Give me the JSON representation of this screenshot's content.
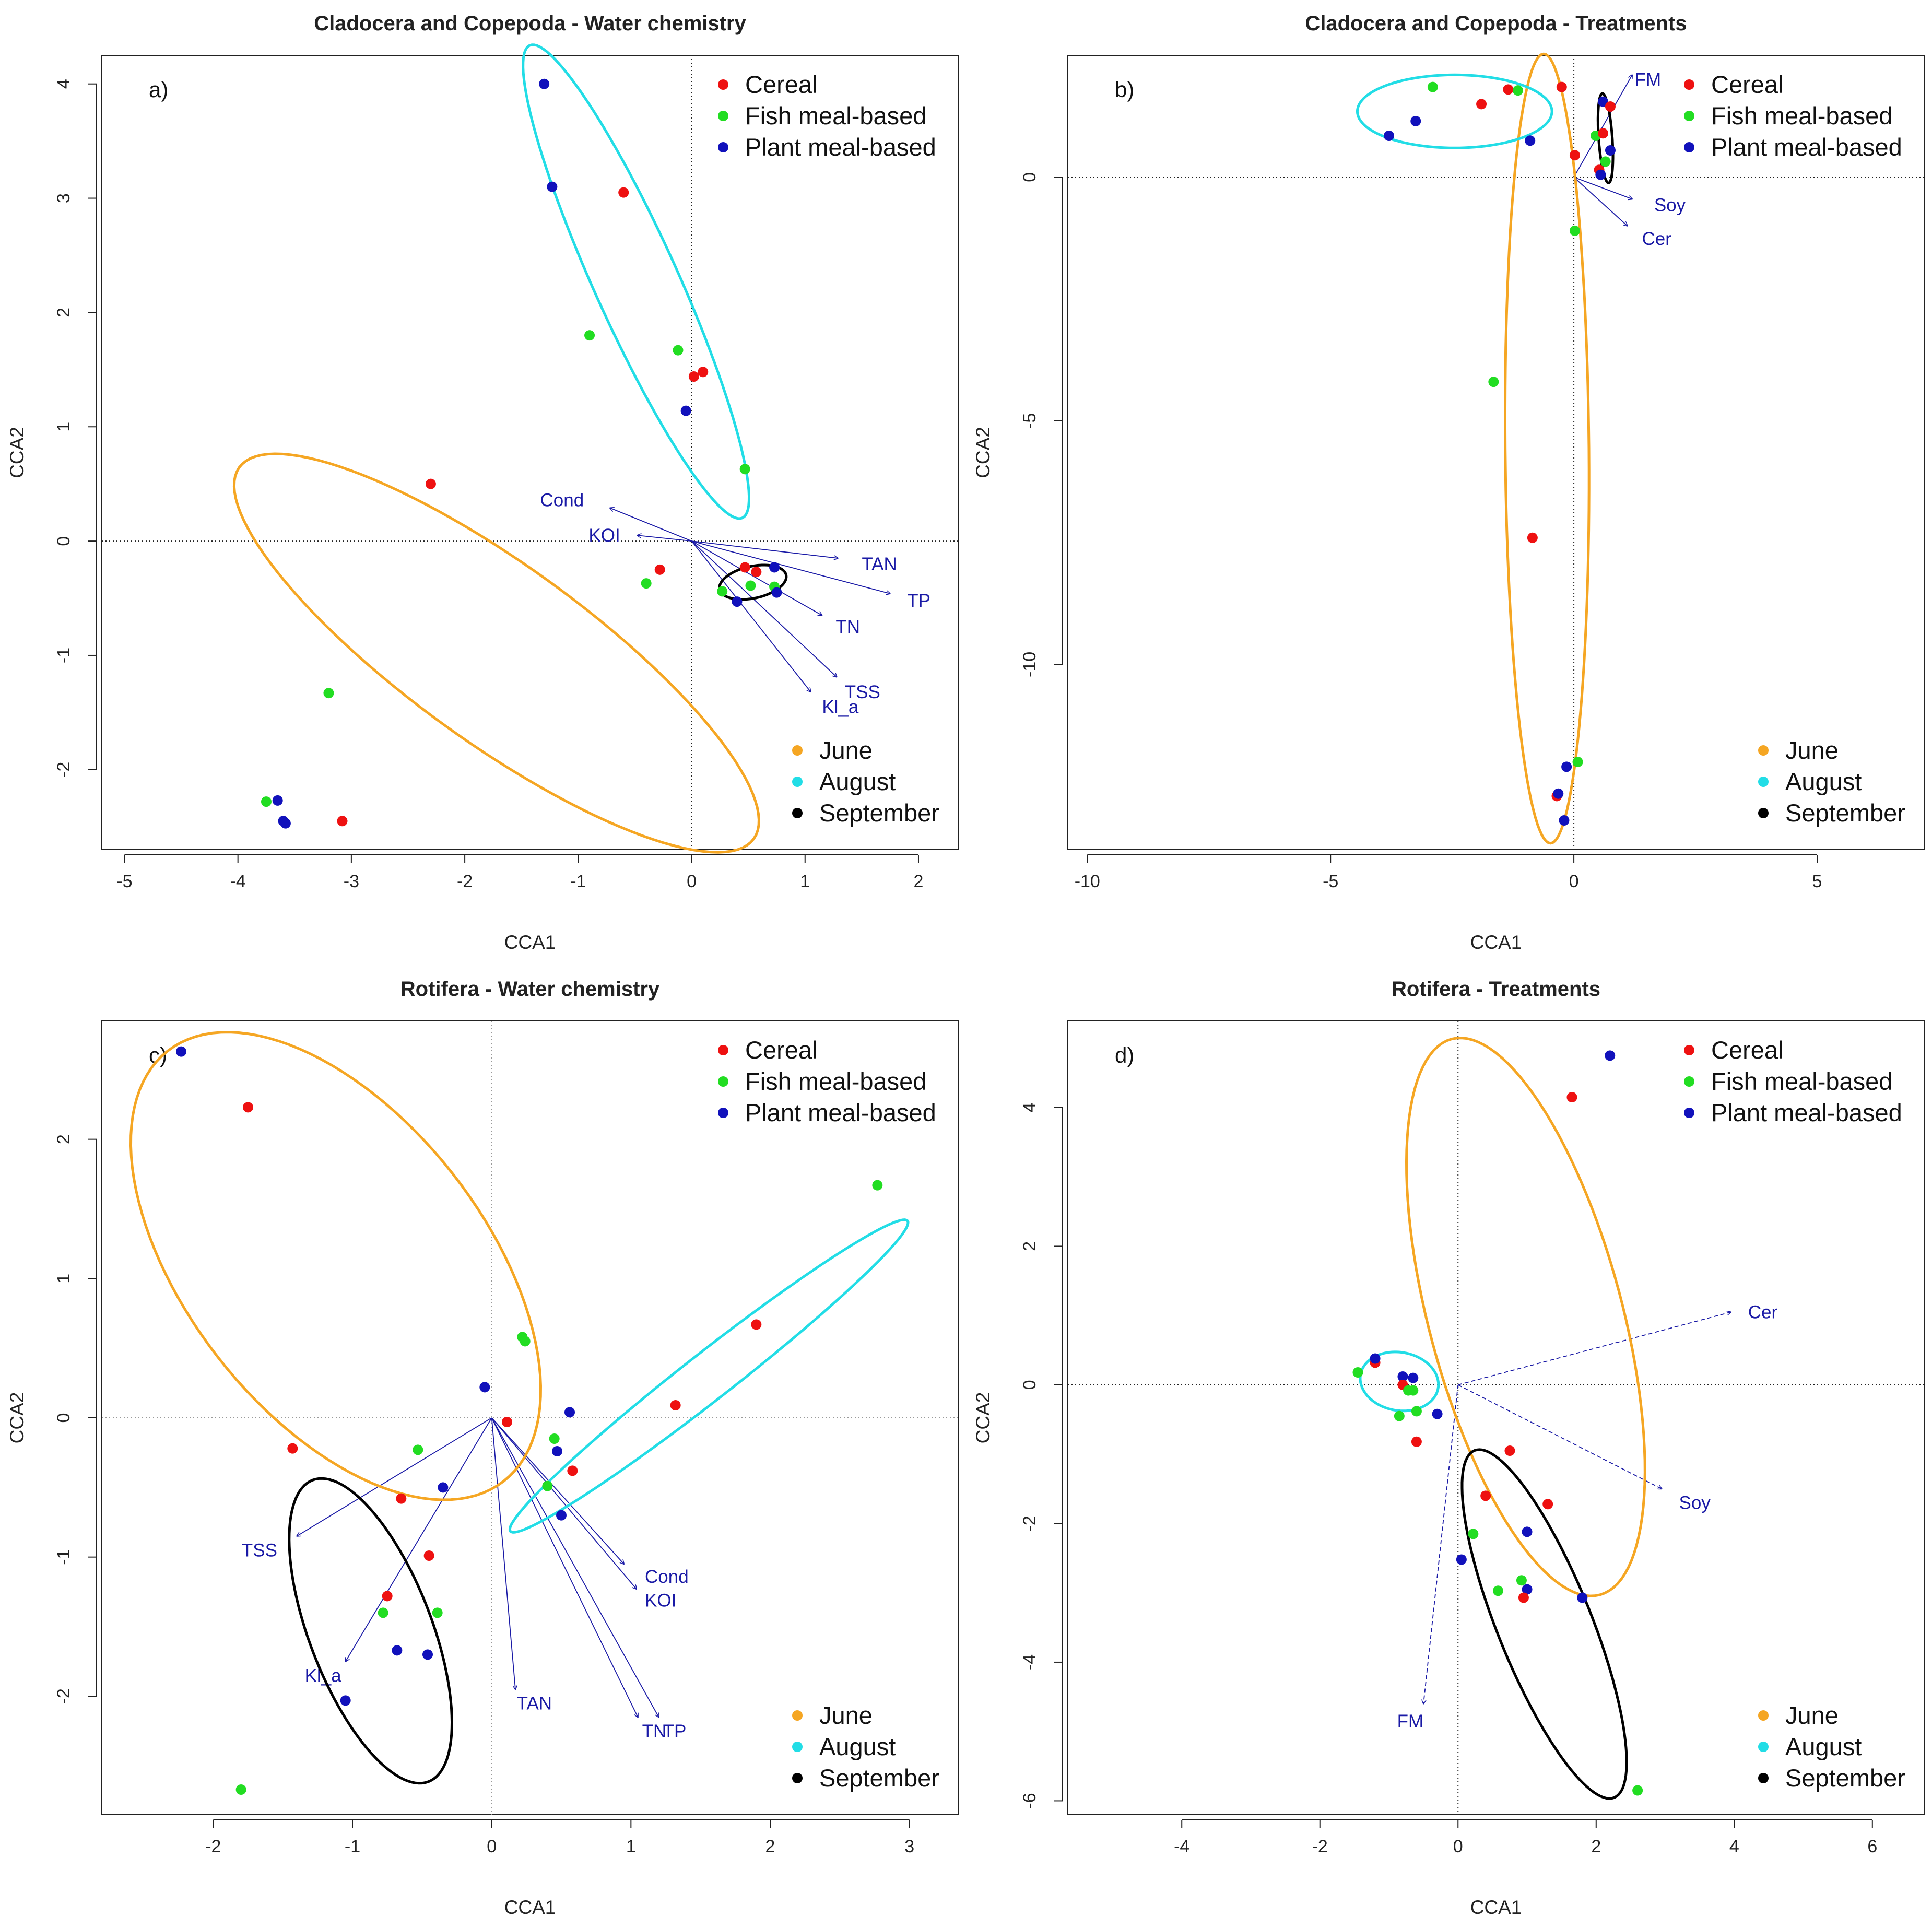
{
  "colors": {
    "cereal": "#ee1111",
    "fish": "#22dd22",
    "plant": "#1111bb",
    "june": "#f5a623",
    "august": "#22dde6",
    "september": "#000000",
    "vector": "#1a1aa6"
  },
  "legend_treatments": [
    {
      "label": "Cereal",
      "color": "#ee1111"
    },
    {
      "label": "Fish meal-based",
      "color": "#22dd22"
    },
    {
      "label": "Plant meal-based",
      "color": "#1111bb"
    }
  ],
  "legend_months": [
    {
      "label": "June",
      "color": "#f5a623"
    },
    {
      "label": "August",
      "color": "#22dde6"
    },
    {
      "label": "September",
      "color": "#000000"
    }
  ],
  "chart_data": [
    {
      "type": "scatter",
      "panel": "a)",
      "title": "Cladocera and Copepoda - Water chemistry",
      "xlabel": "CCA1",
      "ylabel": "CCA2",
      "xlim": [
        -5.2,
        2.35
      ],
      "ylim": [
        -2.7,
        4.25
      ],
      "xticks": [
        -5,
        -4,
        -3,
        -2,
        -1,
        0,
        1,
        2
      ],
      "yticks": [
        -2,
        -1,
        0,
        1,
        2,
        3,
        4
      ],
      "legend_position": "top-right / bottom-right",
      "points": [
        {
          "x": -1.3,
          "y": 4.0,
          "t": "plant"
        },
        {
          "x": -1.23,
          "y": 3.1,
          "t": "plant"
        },
        {
          "x": -0.6,
          "y": 3.05,
          "t": "cereal"
        },
        {
          "x": -0.9,
          "y": 1.8,
          "t": "fish"
        },
        {
          "x": -0.12,
          "y": 1.67,
          "t": "fish"
        },
        {
          "x": 0.02,
          "y": 1.44,
          "t": "cereal"
        },
        {
          "x": 0.1,
          "y": 1.48,
          "t": "cereal"
        },
        {
          "x": -0.05,
          "y": 1.14,
          "t": "plant"
        },
        {
          "x": 0.47,
          "y": 0.63,
          "t": "fish"
        },
        {
          "x": -2.3,
          "y": 0.5,
          "t": "cereal"
        },
        {
          "x": -0.28,
          "y": -0.25,
          "t": "cereal"
        },
        {
          "x": -0.4,
          "y": -0.37,
          "t": "fish"
        },
        {
          "x": -3.2,
          "y": -1.33,
          "t": "fish"
        },
        {
          "x": -3.75,
          "y": -2.28,
          "t": "fish"
        },
        {
          "x": -3.65,
          "y": -2.27,
          "t": "plant"
        },
        {
          "x": -3.6,
          "y": -2.45,
          "t": "plant"
        },
        {
          "x": -3.58,
          "y": -2.47,
          "t": "plant"
        },
        {
          "x": -3.08,
          "y": -2.45,
          "t": "cereal"
        },
        {
          "x": 0.47,
          "y": -0.23,
          "t": "cereal"
        },
        {
          "x": 0.57,
          "y": -0.27,
          "t": "cereal"
        },
        {
          "x": 0.52,
          "y": -0.39,
          "t": "fish"
        },
        {
          "x": 0.73,
          "y": -0.4,
          "t": "fish"
        },
        {
          "x": 0.73,
          "y": -0.23,
          "t": "plant"
        },
        {
          "x": 0.75,
          "y": -0.45,
          "t": "plant"
        },
        {
          "x": 0.27,
          "y": -0.44,
          "t": "fish"
        },
        {
          "x": 0.4,
          "y": -0.53,
          "t": "plant"
        }
      ],
      "ellipses": [
        {
          "month": "june",
          "cx": -1.72,
          "cy": -0.98,
          "rx": 2.79,
          "ry": 0.78,
          "angle": -35.6
        },
        {
          "month": "august",
          "cx": -0.49,
          "cy": 2.27,
          "rx": 2.27,
          "ry": 0.37,
          "angle": -65.6
        },
        {
          "month": "september",
          "cx": 0.54,
          "cy": -0.36,
          "rx": 0.3,
          "ry": 0.14,
          "angle": 12
        }
      ],
      "vectors": [
        {
          "label": "Cond",
          "x": -0.72,
          "y": 0.29,
          "lx": -0.95,
          "ly": 0.36
        },
        {
          "label": "KOI",
          "x": -0.48,
          "y": 0.05,
          "lx": -0.63,
          "ly": 0.05
        },
        {
          "label": "TAN",
          "x": 1.29,
          "y": -0.15,
          "lx": 1.5,
          "ly": -0.2
        },
        {
          "label": "TP",
          "x": 1.75,
          "y": -0.46,
          "lx": 1.9,
          "ly": -0.52
        },
        {
          "label": "TN",
          "x": 1.15,
          "y": -0.65,
          "lx": 1.27,
          "ly": -0.75
        },
        {
          "label": "TSS",
          "x": 1.28,
          "y": -1.19,
          "lx": 1.35,
          "ly": -1.32
        },
        {
          "label": "Kl_a",
          "x": 1.05,
          "y": -1.32,
          "lx": 1.15,
          "ly": -1.45
        }
      ]
    },
    {
      "type": "scatter",
      "panel": "b)",
      "title": "Cladocera and Copepoda - Treatments",
      "xlabel": "CCA1",
      "ylabel": "CCA2",
      "xlim": [
        -10.4,
        7.2
      ],
      "ylim": [
        -13.8,
        2.5
      ],
      "xticks": [
        -10,
        -5,
        0,
        5
      ],
      "yticks": [
        -10,
        -5,
        0
      ],
      "legend_position": "top-right / bottom-right",
      "points": [
        {
          "x": -2.9,
          "y": 1.85,
          "t": "fish"
        },
        {
          "x": -1.35,
          "y": 1.8,
          "t": "cereal"
        },
        {
          "x": -1.15,
          "y": 1.78,
          "t": "fish"
        },
        {
          "x": -0.25,
          "y": 1.85,
          "t": "cereal"
        },
        {
          "x": -1.9,
          "y": 1.5,
          "t": "cereal"
        },
        {
          "x": -3.25,
          "y": 1.15,
          "t": "plant"
        },
        {
          "x": -3.8,
          "y": 0.85,
          "t": "plant"
        },
        {
          "x": -0.9,
          "y": 0.75,
          "t": "plant"
        },
        {
          "x": 0.02,
          "y": 0.45,
          "t": "cereal"
        },
        {
          "x": 0.6,
          "y": 1.55,
          "t": "plant"
        },
        {
          "x": 0.75,
          "y": 1.45,
          "t": "cereal"
        },
        {
          "x": 0.45,
          "y": 0.85,
          "t": "fish"
        },
        {
          "x": 0.6,
          "y": 0.9,
          "t": "cereal"
        },
        {
          "x": 0.75,
          "y": 0.55,
          "t": "plant"
        },
        {
          "x": 0.65,
          "y": 0.32,
          "t": "fish"
        },
        {
          "x": 0.52,
          "y": 0.15,
          "t": "cereal"
        },
        {
          "x": 0.55,
          "y": 0.05,
          "t": "plant"
        },
        {
          "x": 0.02,
          "y": -1.1,
          "t": "fish"
        },
        {
          "x": -1.65,
          "y": -4.2,
          "t": "fish"
        },
        {
          "x": -0.85,
          "y": -7.4,
          "t": "cereal"
        },
        {
          "x": 0.08,
          "y": -12.0,
          "t": "fish"
        },
        {
          "x": -0.15,
          "y": -12.1,
          "t": "plant"
        },
        {
          "x": -0.35,
          "y": -12.7,
          "t": "cereal"
        },
        {
          "x": -0.32,
          "y": -12.65,
          "t": "plant"
        },
        {
          "x": -0.2,
          "y": -13.2,
          "t": "plant"
        }
      ],
      "ellipses": [
        {
          "month": "june",
          "cx": -0.55,
          "cy": -5.57,
          "rx": 8.1,
          "ry": 0.86,
          "angle": -89.5
        },
        {
          "month": "august",
          "cx": -2.45,
          "cy": 1.35,
          "rx": 2.0,
          "ry": 0.75,
          "angle": 0
        },
        {
          "month": "september",
          "cx": 0.65,
          "cy": 0.8,
          "rx": 0.92,
          "ry": 0.14,
          "angle": -86
        }
      ],
      "vectors": [
        {
          "label": "FM",
          "x": 1.2,
          "y": 2.1,
          "lx": 1.25,
          "ly": 2.0
        },
        {
          "label": "Soy",
          "x": 1.2,
          "y": -0.45,
          "lx": 1.65,
          "ly": -0.57
        },
        {
          "label": "Cer",
          "x": 1.1,
          "y": -1.0,
          "lx": 1.4,
          "ly": -1.26
        }
      ]
    },
    {
      "type": "scatter",
      "panel": "c)",
      "title": "Rotifera -  Water chemistry",
      "xlabel": "CCA1",
      "ylabel": "CCA2",
      "xlim": [
        -2.8,
        3.35
      ],
      "ylim": [
        -2.85,
        2.85
      ],
      "xticks": [
        -2,
        -1,
        0,
        1,
        2,
        3
      ],
      "yticks": [
        -2,
        -1,
        0,
        1,
        2
      ],
      "legend_position": "top-right / bottom-right",
      "points": [
        {
          "x": -2.23,
          "y": 2.63,
          "t": "plant"
        },
        {
          "x": -1.75,
          "y": 2.23,
          "t": "cereal"
        },
        {
          "x": -1.43,
          "y": -0.22,
          "t": "cereal"
        },
        {
          "x": 0.22,
          "y": 0.58,
          "t": "fish"
        },
        {
          "x": 0.24,
          "y": 0.55,
          "t": "fish"
        },
        {
          "x": -0.05,
          "y": 0.22,
          "t": "plant"
        },
        {
          "x": 0.11,
          "y": -0.03,
          "t": "cereal"
        },
        {
          "x": 0.56,
          "y": 0.04,
          "t": "plant"
        },
        {
          "x": 1.32,
          "y": 0.09,
          "t": "cereal"
        },
        {
          "x": 1.9,
          "y": 0.67,
          "t": "cereal"
        },
        {
          "x": 2.77,
          "y": 1.67,
          "t": "fish"
        },
        {
          "x": 0.45,
          "y": -0.15,
          "t": "fish"
        },
        {
          "x": 0.47,
          "y": -0.24,
          "t": "plant"
        },
        {
          "x": 0.58,
          "y": -0.38,
          "t": "cereal"
        },
        {
          "x": 0.4,
          "y": -0.49,
          "t": "fish"
        },
        {
          "x": 0.5,
          "y": -0.7,
          "t": "plant"
        },
        {
          "x": -0.53,
          "y": -0.23,
          "t": "fish"
        },
        {
          "x": -0.35,
          "y": -0.5,
          "t": "plant"
        },
        {
          "x": -0.65,
          "y": -0.58,
          "t": "cereal"
        },
        {
          "x": -0.45,
          "y": -0.99,
          "t": "cereal"
        },
        {
          "x": -0.75,
          "y": -1.28,
          "t": "cereal"
        },
        {
          "x": -0.78,
          "y": -1.4,
          "t": "fish"
        },
        {
          "x": -0.39,
          "y": -1.4,
          "t": "fish"
        },
        {
          "x": -0.68,
          "y": -1.67,
          "t": "plant"
        },
        {
          "x": -0.46,
          "y": -1.7,
          "t": "plant"
        },
        {
          "x": -1.05,
          "y": -2.03,
          "t": "plant"
        },
        {
          "x": -1.8,
          "y": -2.67,
          "t": "fish"
        }
      ],
      "ellipses": [
        {
          "month": "june",
          "cx": -1.12,
          "cy": 1.09,
          "rx": 1.96,
          "ry": 1.07,
          "angle": -52
        },
        {
          "month": "august",
          "cx": 1.56,
          "cy": 0.3,
          "rx": 1.81,
          "ry": 0.17,
          "angle": 38
        },
        {
          "month": "september",
          "cx": -0.87,
          "cy": -1.53,
          "rx": 1.16,
          "ry": 0.44,
          "angle": -69
        }
      ],
      "vectors": [
        {
          "label": "TSS",
          "x": -1.4,
          "y": -0.85,
          "lx": -1.54,
          "ly": -0.95
        },
        {
          "label": "Kl_a",
          "x": -1.05,
          "y": -1.75,
          "lx": -1.08,
          "ly": -1.85
        },
        {
          "label": "TAN",
          "x": 0.17,
          "y": -1.95,
          "lx": 0.18,
          "ly": -2.05
        },
        {
          "label": "TN",
          "x": 1.05,
          "y": -2.15,
          "lx": 1.08,
          "ly": -2.25
        },
        {
          "label": "TP",
          "x": 1.2,
          "y": -2.15,
          "lx": 1.23,
          "ly": -2.25
        },
        {
          "label": "Cond",
          "x": 0.95,
          "y": -1.05,
          "lx": 1.1,
          "ly": -1.14
        },
        {
          "label": "KOI",
          "x": 1.04,
          "y": -1.23,
          "lx": 1.1,
          "ly": -1.31
        }
      ]
    },
    {
      "type": "scatter",
      "panel": "d)",
      "title": "Rotifera - Treatments",
      "xlabel": "CCA1",
      "ylabel": "CCA2",
      "xlim": [
        -5.65,
        6.75
      ],
      "ylim": [
        -6.2,
        5.25
      ],
      "xticks": [
        -4,
        -2,
        0,
        2,
        4,
        6
      ],
      "yticks": [
        -6,
        -4,
        -2,
        0,
        2,
        4
      ],
      "legend_position": "top-right / bottom-right",
      "points": [
        {
          "x": 2.2,
          "y": 4.75,
          "t": "plant"
        },
        {
          "x": 1.65,
          "y": 4.15,
          "t": "cereal"
        },
        {
          "x": -1.2,
          "y": 0.32,
          "t": "cereal"
        },
        {
          "x": -1.2,
          "y": 0.38,
          "t": "plant"
        },
        {
          "x": -1.45,
          "y": 0.18,
          "t": "fish"
        },
        {
          "x": -0.8,
          "y": 0.12,
          "t": "plant"
        },
        {
          "x": -0.65,
          "y": 0.1,
          "t": "plant"
        },
        {
          "x": -0.8,
          "y": 0.0,
          "t": "cereal"
        },
        {
          "x": -0.72,
          "y": -0.08,
          "t": "fish"
        },
        {
          "x": -0.65,
          "y": -0.08,
          "t": "fish"
        },
        {
          "x": -0.6,
          "y": -0.38,
          "t": "fish"
        },
        {
          "x": -0.85,
          "y": -0.45,
          "t": "fish"
        },
        {
          "x": -0.3,
          "y": -0.42,
          "t": "plant"
        },
        {
          "x": -0.6,
          "y": -0.82,
          "t": "cereal"
        },
        {
          "x": 0.75,
          "y": -0.95,
          "t": "cereal"
        },
        {
          "x": 0.4,
          "y": -1.6,
          "t": "cereal"
        },
        {
          "x": 1.3,
          "y": -1.72,
          "t": "cereal"
        },
        {
          "x": 0.22,
          "y": -2.15,
          "t": "fish"
        },
        {
          "x": 1.0,
          "y": -2.12,
          "t": "plant"
        },
        {
          "x": 0.05,
          "y": -2.52,
          "t": "plant"
        },
        {
          "x": 0.92,
          "y": -2.82,
          "t": "fish"
        },
        {
          "x": 0.58,
          "y": -2.97,
          "t": "fish"
        },
        {
          "x": 1.0,
          "y": -2.95,
          "t": "plant"
        },
        {
          "x": 0.95,
          "y": -3.07,
          "t": "cereal"
        },
        {
          "x": 1.8,
          "y": -3.07,
          "t": "plant"
        },
        {
          "x": 2.6,
          "y": -5.85,
          "t": "fish"
        }
      ],
      "ellipses": [
        {
          "month": "june",
          "cx": 0.98,
          "cy": 0.98,
          "rx": 4.15,
          "ry": 1.4,
          "angle": -75
        },
        {
          "month": "august",
          "cx": -0.85,
          "cy": 0.05,
          "rx": 0.57,
          "ry": 0.42,
          "angle": -10
        },
        {
          "month": "september",
          "cx": 1.25,
          "cy": -3.45,
          "rx": 2.7,
          "ry": 0.68,
          "angle": -68
        }
      ],
      "vectors": [
        {
          "label": "Cer",
          "x": 3.95,
          "y": 1.05,
          "lx": 4.2,
          "ly": 1.05
        },
        {
          "label": "Soy",
          "x": 2.95,
          "y": -1.5,
          "lx": 3.2,
          "ly": -1.7
        },
        {
          "label": "FM",
          "x": -0.5,
          "y": -4.6,
          "lx": -0.5,
          "ly": -4.85
        }
      ]
    }
  ]
}
